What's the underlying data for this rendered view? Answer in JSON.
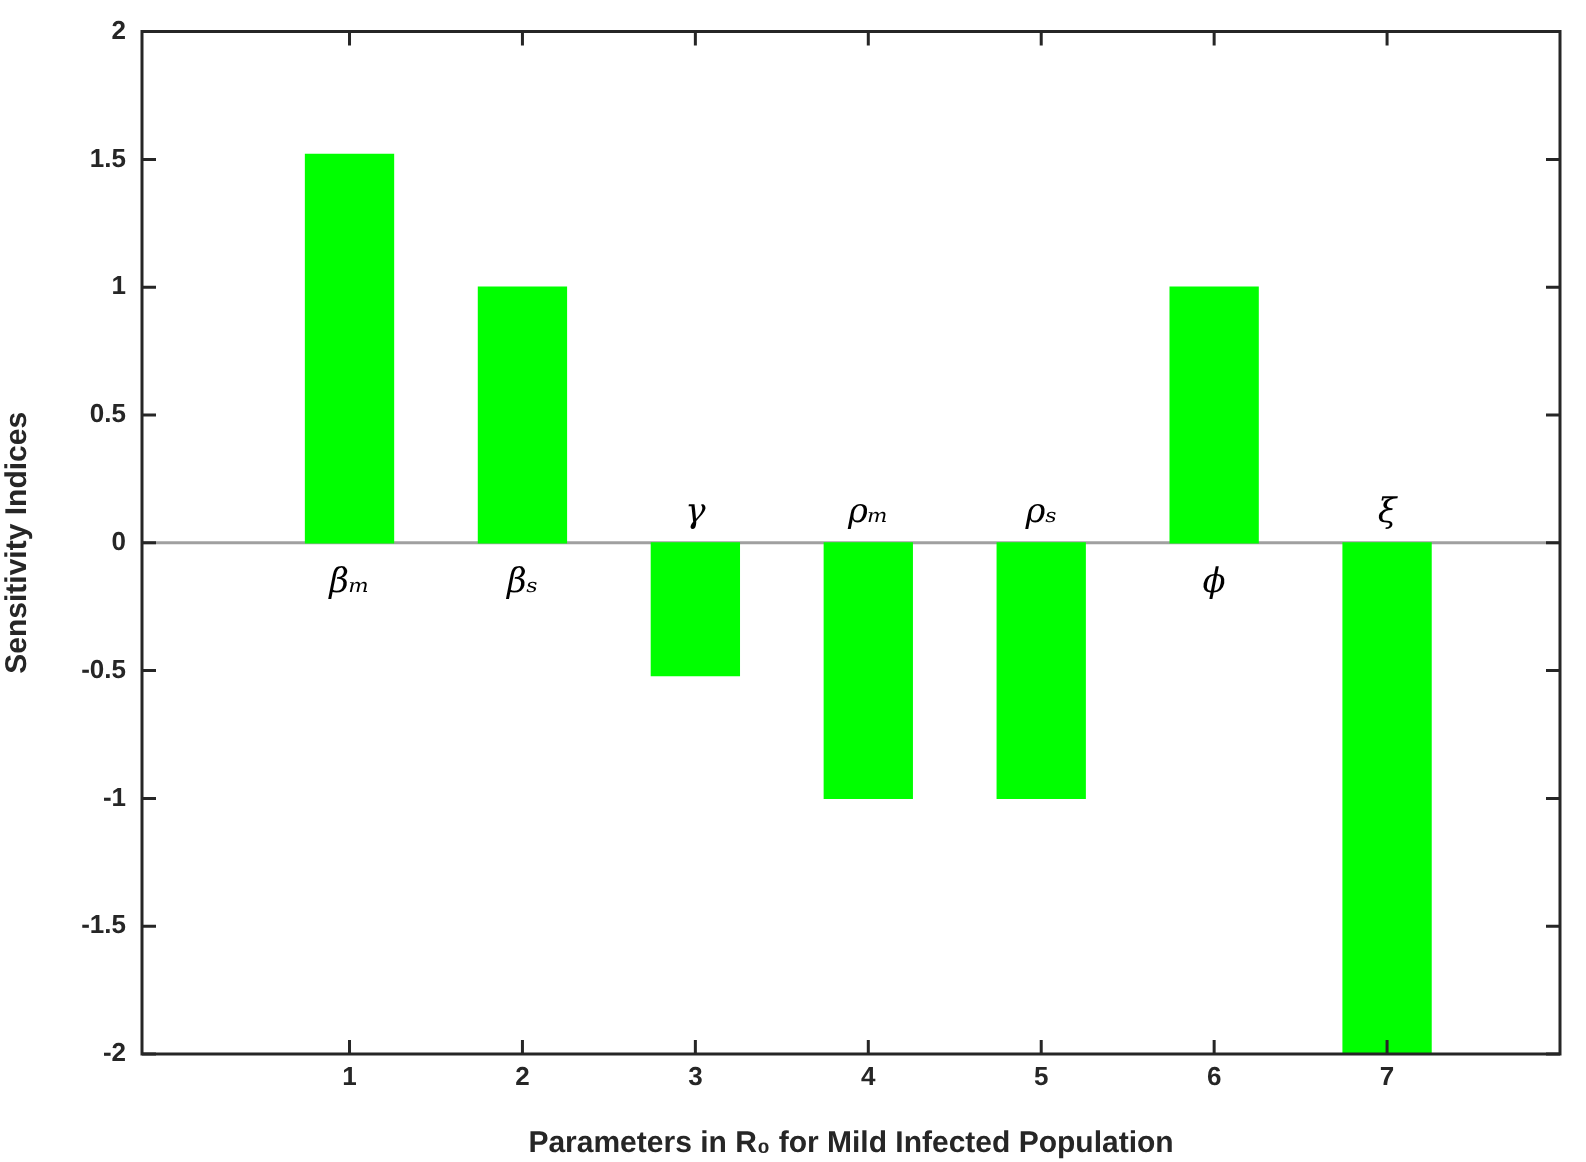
{
  "chart_data": {
    "type": "bar",
    "xlabel": "Parameters in R₀ for Mild Infected Population",
    "ylabel": "Sensitivity Indices",
    "x": [
      1,
      2,
      3,
      4,
      5,
      6,
      7
    ],
    "values": [
      1.52,
      1,
      -0.52,
      -1,
      -1,
      1,
      -2
    ],
    "color": "#00ff00",
    "xlim": [
      -0.2,
      8
    ],
    "xticks": [
      1,
      2,
      3,
      4,
      5,
      6,
      7
    ],
    "ylim": [
      -2,
      2
    ],
    "yticks": [
      -2,
      -1.5,
      -1,
      -0.5,
      0,
      0.5,
      1,
      1.5,
      2
    ],
    "grid": false,
    "legend": false,
    "ref_lines": [
      {
        "axis": "y",
        "value": 0,
        "color": "#a0a0a0"
      }
    ],
    "annotations": [
      "βₘ",
      "βₛ",
      "γ",
      "ρₘ",
      "ρₛ",
      "ϕ",
      "ξ"
    ]
  }
}
